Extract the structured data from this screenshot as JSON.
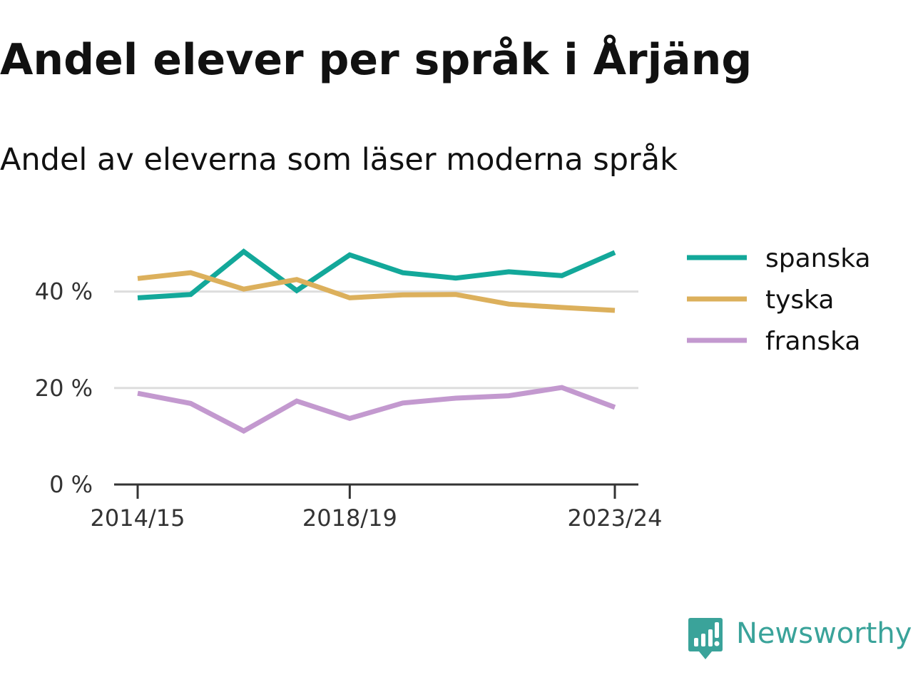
{
  "header": {
    "title": "Andel elever per språk i Årjäng",
    "subtitle": "Andel av eleverna som läser moderna språk"
  },
  "branding": {
    "name": "Newsworthy",
    "color": "#3aa39a",
    "icon": "bar-chart-speech-bubble-icon"
  },
  "chart_data": {
    "type": "line",
    "x": [
      "2014/15",
      "2015/16",
      "2016/17",
      "2017/18",
      "2018/19",
      "2019/20",
      "2020/21",
      "2021/22",
      "2022/23",
      "2023/24"
    ],
    "x_tick_labels": [
      "2014/15",
      "2018/19",
      "2023/24"
    ],
    "y_ticks": [
      0,
      20,
      40
    ],
    "y_tick_labels": [
      "0 %",
      "20 %",
      "40 %"
    ],
    "ylim": [
      0,
      50
    ],
    "grid": true,
    "legend_position": "right",
    "series": [
      {
        "name": "spanska",
        "color": "#13a89a",
        "values": [
          38.7,
          39.4,
          48.3,
          40.2,
          47.6,
          43.9,
          42.8,
          44.1,
          43.3,
          48.1
        ]
      },
      {
        "name": "tyska",
        "color": "#dcb05c",
        "values": [
          42.7,
          43.9,
          40.5,
          42.5,
          38.7,
          39.3,
          39.4,
          37.4,
          36.7,
          36.1
        ]
      },
      {
        "name": "franska",
        "color": "#c399cf",
        "values": [
          18.9,
          16.8,
          11.1,
          17.3,
          13.7,
          16.9,
          17.9,
          18.4,
          20.1,
          16.0
        ]
      }
    ]
  }
}
